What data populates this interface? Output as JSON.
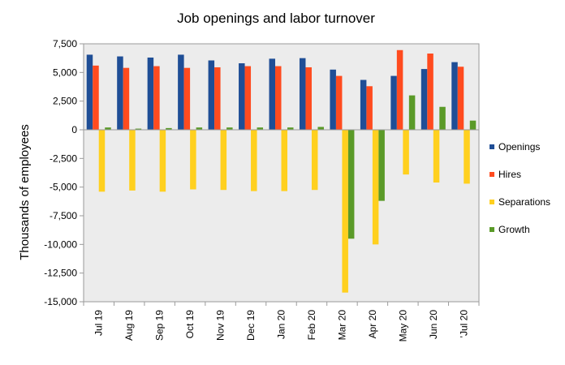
{
  "chart_data": {
    "type": "bar",
    "title": "Job openings and labor turnover",
    "xlabel": "",
    "ylabel": "Thousands  of employees",
    "ylim": [
      -15000,
      7500
    ],
    "yticks": [
      7500,
      5000,
      2500,
      0,
      -2500,
      -5000,
      -7500,
      -10000,
      -12500,
      -15000
    ],
    "ytick_labels": [
      "7,500",
      "5,000",
      "2,500",
      "0",
      "-2,500",
      "-5,000",
      "-7,500",
      "-10,000",
      "-12,500",
      "-15,000"
    ],
    "categories": [
      "Jul 19",
      "Aug 19",
      "Sep 19",
      "Oct 19",
      "Nov 19",
      "Dec 19",
      "Jan 20",
      "Feb 20",
      "Mar 20",
      "Apr 20",
      "May 20",
      "Jun 20",
      "Jul 20"
    ],
    "category_labels": [
      "Jul 19",
      "Aug 19",
      "Sep 19",
      "Oct 19",
      "Nov 19",
      "Dec 19",
      "Jan 20",
      "Feb 20",
      "Mar 20",
      "Apr 20",
      "May 20",
      "Jun 20",
      "'Jul 20"
    ],
    "series": [
      {
        "name": "Openings",
        "color": "#1f4e96",
        "values": [
          6550,
          6400,
          6300,
          6550,
          6050,
          5800,
          6200,
          6250,
          5250,
          4350,
          4700,
          5300,
          5900
        ]
      },
      {
        "name": "Hires",
        "color": "#ff4b1f",
        "values": [
          5600,
          5400,
          5550,
          5400,
          5450,
          5550,
          5550,
          5450,
          4700,
          3800,
          6950,
          6650,
          5500
        ]
      },
      {
        "name": "Separations",
        "color": "#ffd01f",
        "values": [
          -5400,
          -5300,
          -5400,
          -5200,
          -5250,
          -5350,
          -5350,
          -5250,
          -14200,
          -10000,
          -3900,
          -4600,
          -4700
        ]
      },
      {
        "name": "Growth",
        "color": "#5a9a28",
        "values": [
          200,
          100,
          150,
          200,
          200,
          200,
          200,
          250,
          -9500,
          -6200,
          3000,
          2000,
          800
        ]
      }
    ],
    "grid": false,
    "plot_background": "#ececec",
    "legend_position": "right"
  }
}
